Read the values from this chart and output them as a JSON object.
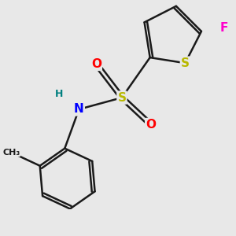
{
  "background_color": "#e8e8e8",
  "bond_color": "#1a1a1a",
  "bond_width": 1.8,
  "atom_colors": {
    "S": "#b8b800",
    "O": "#ff0000",
    "N": "#0000ff",
    "H": "#008080",
    "F": "#ff00cc",
    "C": "#1a1a1a"
  },
  "fs_large": 11,
  "fs_small": 9
}
